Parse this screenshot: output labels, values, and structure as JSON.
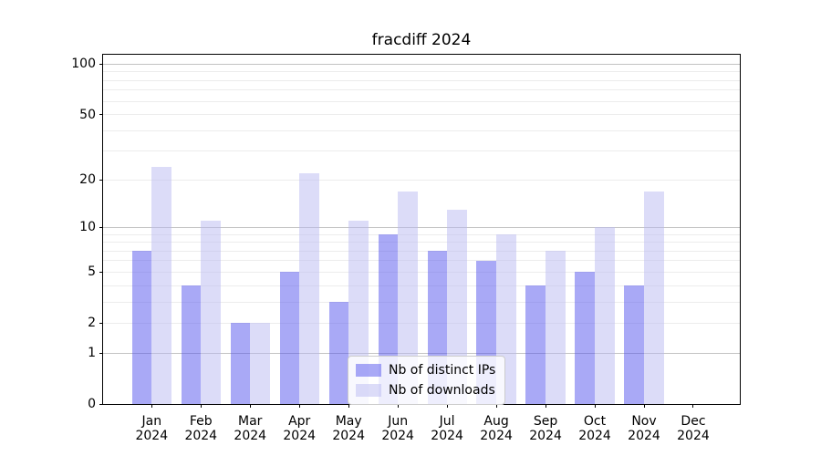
{
  "title": "fracdiff 2024",
  "legend": {
    "items": [
      {
        "label": "Nb of distinct IPs",
        "color": "rgba(83,83,237,0.5)",
        "color_hex": "#a9a9f6"
      },
      {
        "label": "Nb of downloads",
        "color": "rgba(185,185,241,0.5)",
        "color_hex": "#dcdcf8"
      }
    ]
  },
  "x_axis": {
    "months": [
      "Jan",
      "Feb",
      "Mar",
      "Apr",
      "May",
      "Jun",
      "Jul",
      "Aug",
      "Sep",
      "Oct",
      "Nov",
      "Dec"
    ],
    "year": "2024"
  },
  "y_axis": {
    "tick_labels": [
      "0",
      "1",
      "2",
      "5",
      "10",
      "20",
      "50",
      "100"
    ]
  },
  "chart_data": {
    "type": "bar",
    "title": "fracdiff 2024",
    "categories": [
      "Jan 2024",
      "Feb 2024",
      "Mar 2024",
      "Apr 2024",
      "May 2024",
      "Jun 2024",
      "Jul 2024",
      "Aug 2024",
      "Sep 2024",
      "Oct 2024",
      "Nov 2024",
      "Dec 2024"
    ],
    "series": [
      {
        "name": "Nb of distinct IPs",
        "values": [
          7,
          4,
          2,
          5,
          3,
          9,
          7,
          6,
          4,
          5,
          4,
          0
        ]
      },
      {
        "name": "Nb of downloads",
        "values": [
          24,
          11,
          2,
          22,
          11,
          17,
          13,
          9,
          7,
          10,
          17,
          0
        ]
      }
    ],
    "xlabel": "",
    "ylabel": "",
    "y_scale": "log1p",
    "y_ticks": [
      0,
      1,
      2,
      5,
      10,
      20,
      50,
      100
    ],
    "y_minor_gridlines": [
      2,
      3,
      4,
      5,
      6,
      7,
      8,
      9,
      20,
      30,
      40,
      50,
      60,
      70,
      80,
      90
    ],
    "y_major_gridlines": [
      1,
      10,
      100
    ],
    "ylim": [
      0,
      115
    ],
    "grid": true,
    "legend_position": "lower center"
  },
  "colors": {
    "ips_bar": "rgba(83,83,237,0.5)",
    "downloads_bar": "rgba(185,185,241,0.5)",
    "grid_major": "#c3c3c3",
    "grid_minor": "#ececec",
    "spine": "#000000",
    "background": "#ffffff"
  }
}
